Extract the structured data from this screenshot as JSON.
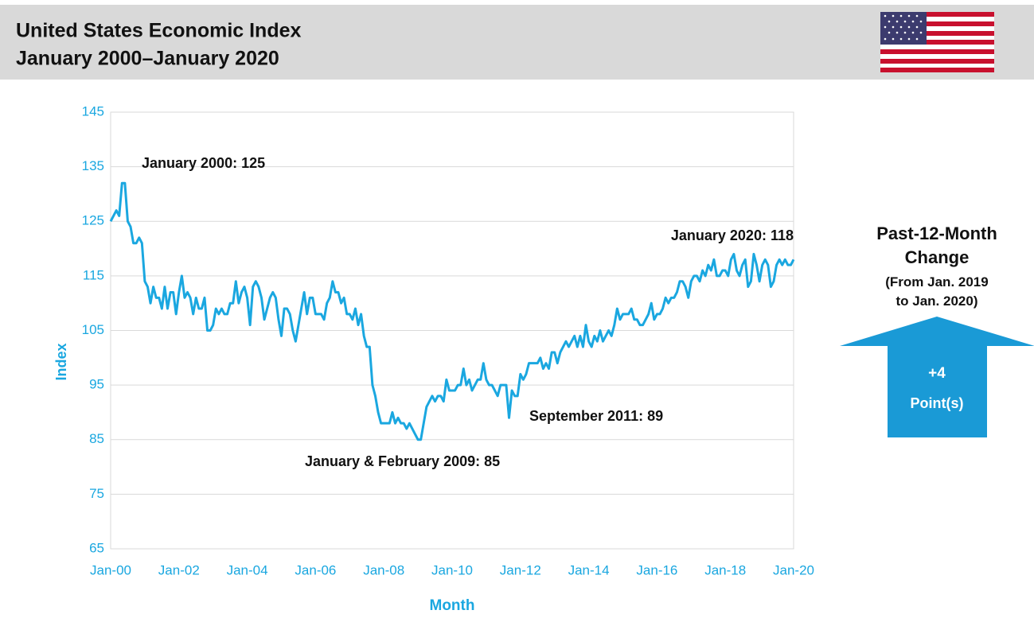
{
  "chart_data": {
    "type": "line",
    "title": "United States Economic Index",
    "subtitle": "January 2000–January 2020",
    "x_label": "Month",
    "y_label": "Index",
    "color": "#1aa7e0",
    "grid": true,
    "ylim": [
      65,
      145
    ],
    "yticks": [
      65,
      75,
      85,
      95,
      105,
      115,
      125,
      135,
      145
    ],
    "categories": [
      "Jan-00",
      null,
      null,
      null,
      null,
      null,
      null,
      null,
      null,
      null,
      null,
      null,
      null,
      null,
      null,
      null,
      null,
      null,
      null,
      null,
      null,
      null,
      null,
      null,
      "Jan-02",
      null,
      null,
      null,
      null,
      null,
      null,
      null,
      null,
      null,
      null,
      null,
      null,
      null,
      null,
      null,
      null,
      null,
      null,
      null,
      null,
      null,
      null,
      null,
      "Jan-04",
      null,
      null,
      null,
      null,
      null,
      null,
      null,
      null,
      null,
      null,
      null,
      null,
      null,
      null,
      null,
      null,
      null,
      null,
      null,
      null,
      null,
      null,
      null,
      "Jan-06",
      null,
      null,
      null,
      null,
      null,
      null,
      null,
      null,
      null,
      null,
      null,
      null,
      null,
      null,
      null,
      null,
      null,
      null,
      null,
      null,
      null,
      null,
      null,
      "Jan-08",
      null,
      null,
      null,
      null,
      null,
      null,
      null,
      null,
      null,
      null,
      null,
      null,
      null,
      null,
      null,
      null,
      null,
      null,
      null,
      null,
      null,
      null,
      null,
      "Jan-10",
      null,
      null,
      null,
      null,
      null,
      null,
      null,
      null,
      null,
      null,
      null,
      null,
      null,
      null,
      null,
      null,
      null,
      null,
      null,
      null,
      null,
      null,
      null,
      "Jan-12",
      null,
      null,
      null,
      null,
      null,
      null,
      null,
      null,
      null,
      null,
      null,
      null,
      null,
      null,
      null,
      null,
      null,
      null,
      null,
      null,
      null,
      null,
      null,
      "Jan-14",
      null,
      null,
      null,
      null,
      null,
      null,
      null,
      null,
      null,
      null,
      null,
      null,
      null,
      null,
      null,
      null,
      null,
      null,
      null,
      null,
      null,
      null,
      null,
      "Jan-16",
      null,
      null,
      null,
      null,
      null,
      null,
      null,
      null,
      null,
      null,
      null,
      null,
      null,
      null,
      null,
      null,
      null,
      null,
      null,
      null,
      null,
      null,
      null,
      "Jan-18",
      null,
      null,
      null,
      null,
      null,
      null,
      null,
      null,
      null,
      null,
      null,
      null,
      null,
      null,
      null,
      null,
      null,
      null,
      null,
      null,
      null,
      null,
      null,
      "Jan-20"
    ],
    "values": [
      125,
      126,
      127,
      126,
      132,
      132,
      125,
      124,
      121,
      121,
      122,
      121,
      114,
      113,
      110,
      113,
      111,
      111,
      109,
      113,
      109,
      112,
      112,
      108,
      112,
      115,
      111,
      112,
      111,
      108,
      111,
      109,
      109,
      111,
      105,
      105,
      106,
      109,
      108,
      109,
      108,
      108,
      110,
      110,
      114,
      110,
      112,
      113,
      111,
      106,
      113,
      114,
      113,
      111,
      107,
      109,
      111,
      112,
      111,
      107,
      104,
      109,
      109,
      108,
      105,
      103,
      106,
      109,
      112,
      108,
      111,
      111,
      108,
      108,
      108,
      107,
      110,
      111,
      114,
      112,
      112,
      110,
      111,
      108,
      108,
      107,
      109,
      106,
      108,
      104,
      102,
      102,
      95,
      93,
      90,
      88,
      88,
      88,
      88,
      90,
      88,
      89,
      88,
      88,
      87,
      88,
      87,
      86,
      85,
      85,
      88,
      91,
      92,
      93,
      92,
      93,
      93,
      92,
      96,
      94,
      94,
      94,
      95,
      95,
      98,
      95,
      96,
      94,
      95,
      96,
      96,
      99,
      96,
      95,
      95,
      94,
      93,
      95,
      95,
      95,
      89,
      94,
      93,
      93,
      97,
      96,
      97,
      99,
      99,
      99,
      99,
      100,
      98,
      99,
      98,
      101,
      101,
      99,
      101,
      102,
      103,
      102,
      103,
      104,
      102,
      104,
      102,
      106,
      103,
      102,
      104,
      103,
      105,
      103,
      104,
      105,
      104,
      106,
      109,
      107,
      108,
      108,
      108,
      109,
      107,
      107,
      106,
      106,
      107,
      108,
      110,
      107,
      108,
      108,
      109,
      111,
      110,
      111,
      111,
      112,
      114,
      114,
      113,
      111,
      114,
      115,
      115,
      114,
      116,
      115,
      117,
      116,
      118,
      115,
      115,
      116,
      116,
      115,
      118,
      119,
      116,
      115,
      117,
      118,
      113,
      114,
      119,
      117,
      114,
      117,
      118,
      117,
      113,
      114,
      117,
      118,
      117,
      118,
      117,
      117,
      118
    ],
    "annotations": [
      "January 2000: 125",
      "January & February 2009: 85",
      "September 2011: 89",
      "January 2020: 118"
    ]
  },
  "side_panel": {
    "heading": "Past-12-Month Change",
    "subheading": "(From Jan. 2019 to Jan. 2020)",
    "value": "+4",
    "unit": "Point(s)"
  }
}
